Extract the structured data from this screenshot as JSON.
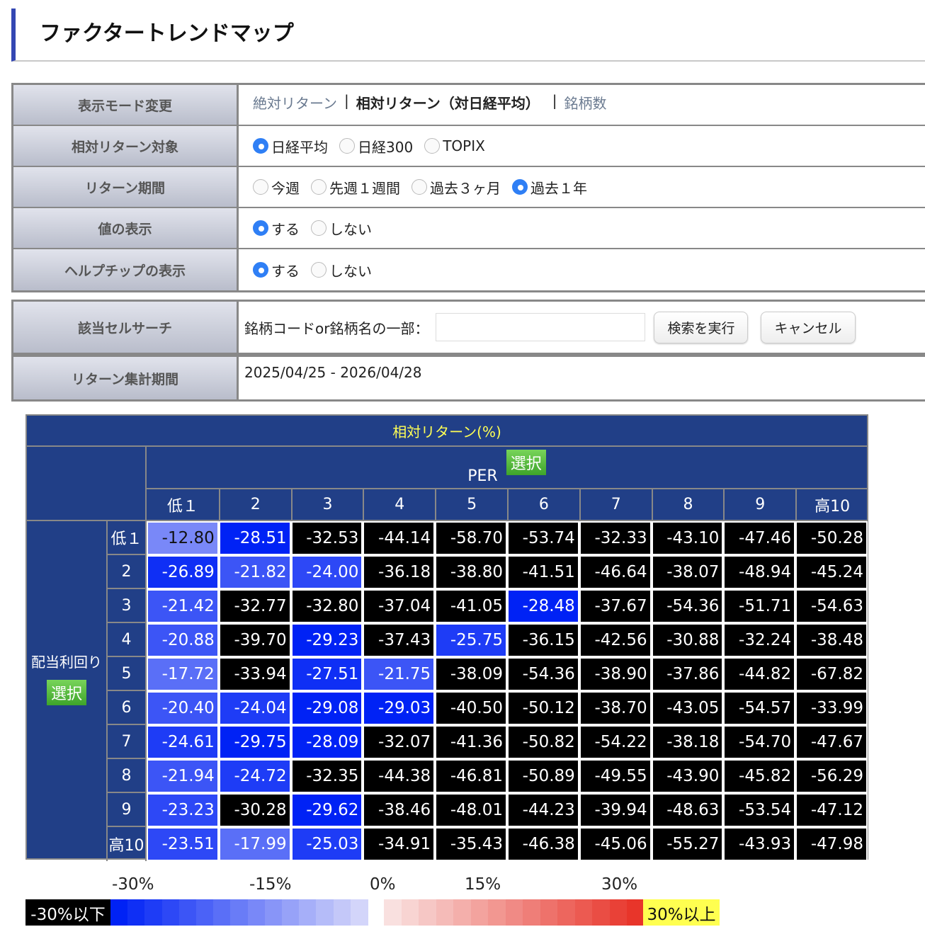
{
  "title": "ファクタートレンドマップ",
  "form": {
    "mode": {
      "label": "表示モード変更",
      "opt1": "絶対リターン",
      "sep": "|",
      "opt2": "相対リターン（対日経平均）",
      "opt3": "銘柄数"
    },
    "target": {
      "label": "相対リターン対象",
      "options": [
        "日経平均",
        "日経300",
        "TOPIX"
      ],
      "selected": 0
    },
    "period": {
      "label": "リターン期間",
      "options": [
        "今週",
        "先週１週間",
        "過去３ヶ月",
        "過去１年"
      ],
      "selected": 3
    },
    "values": {
      "label": "値の表示",
      "options": [
        "する",
        "しない"
      ],
      "selected": 0
    },
    "helptip": {
      "label": "ヘルプチップの表示",
      "options": [
        "する",
        "しない"
      ],
      "selected": 0
    },
    "search": {
      "label": "該当セルサーチ",
      "prompt": "銘柄コードor銘柄名の一部：",
      "value": "",
      "exec": "検索を実行",
      "cancel": "キャンセル"
    },
    "range": {
      "label": "リターン集計期間",
      "value": "2025/04/25 - 2026/04/28"
    }
  },
  "chart_data": {
    "type": "heatmap",
    "title": "相対リターン(%)",
    "xlabel": "PER",
    "ylabel": "配当利回り",
    "select_label": "選択",
    "columns": [
      "低１",
      "2",
      "3",
      "4",
      "5",
      "6",
      "7",
      "8",
      "9",
      "高10"
    ],
    "rows": [
      "低１",
      "2",
      "3",
      "4",
      "5",
      "6",
      "7",
      "8",
      "9",
      "高10"
    ],
    "values": [
      [
        -12.8,
        -28.51,
        -32.53,
        -44.14,
        -58.7,
        -53.74,
        -32.33,
        -43.1,
        -47.46,
        -50.28
      ],
      [
        -26.89,
        -21.82,
        -24.0,
        -36.18,
        -38.8,
        -41.51,
        -46.64,
        -38.07,
        -48.94,
        -45.24
      ],
      [
        -21.42,
        -32.77,
        -32.8,
        -37.04,
        -41.05,
        -28.48,
        -37.67,
        -54.36,
        -51.71,
        -54.63
      ],
      [
        -20.88,
        -39.7,
        -29.23,
        -37.43,
        -25.75,
        -36.15,
        -42.56,
        -30.88,
        -32.24,
        -38.48
      ],
      [
        -17.72,
        -33.94,
        -27.51,
        -21.75,
        -38.09,
        -54.36,
        -38.9,
        -37.86,
        -44.82,
        -67.82
      ],
      [
        -20.4,
        -24.04,
        -29.08,
        -29.03,
        -40.5,
        -50.12,
        -38.7,
        -43.05,
        -54.57,
        -33.99
      ],
      [
        -24.61,
        -29.75,
        -28.09,
        -32.07,
        -41.36,
        -50.82,
        -54.22,
        -38.18,
        -54.7,
        -47.67
      ],
      [
        -21.94,
        -24.72,
        -32.35,
        -44.38,
        -46.81,
        -50.89,
        -49.55,
        -43.9,
        -45.82,
        -56.29
      ],
      [
        -23.23,
        -30.28,
        -29.62,
        -38.46,
        -48.01,
        -44.23,
        -39.94,
        -48.63,
        -53.54,
        -47.12
      ],
      [
        -23.51,
        -17.99,
        -25.03,
        -34.91,
        -35.43,
        -46.38,
        -45.06,
        -55.27,
        -43.93,
        -47.98
      ]
    ],
    "legend": {
      "ticks": [
        "-30%",
        "-15%",
        "0%",
        "15%",
        "30%"
      ],
      "low": "-30%以下",
      "high": "30%以上",
      "low_color": "#000000",
      "high_color": "#ffff50",
      "neg_color": "#0022f5",
      "pos_color": "#e8352a"
    }
  }
}
